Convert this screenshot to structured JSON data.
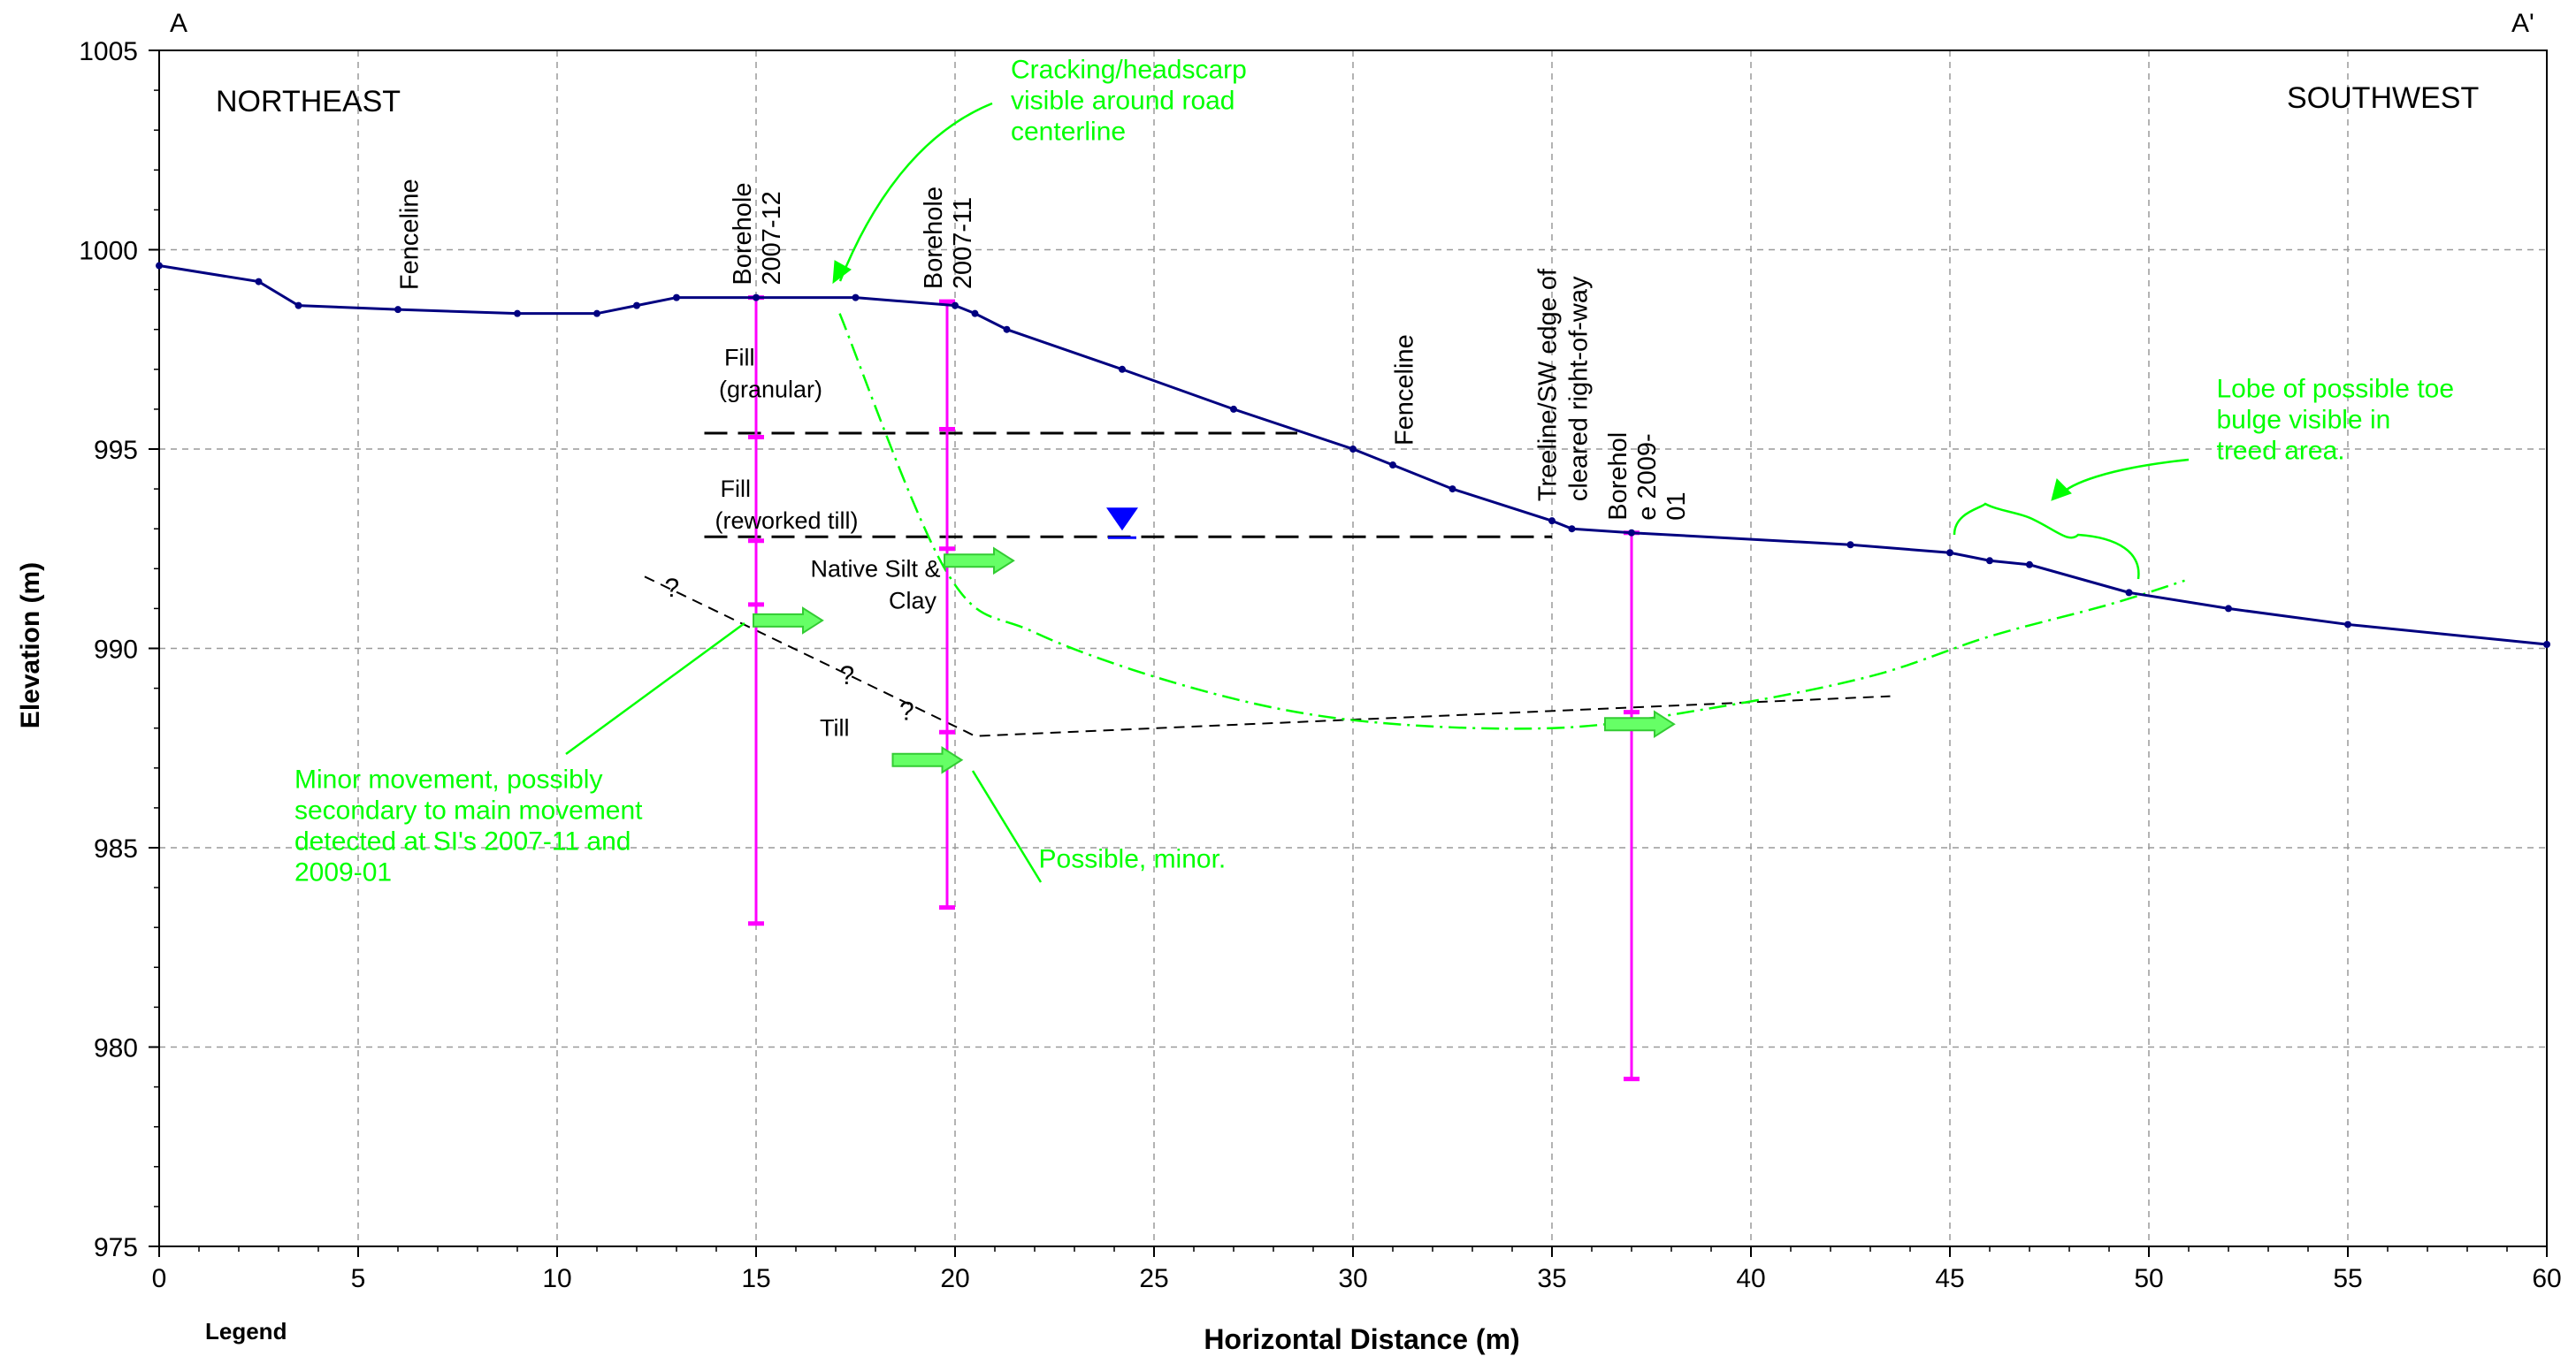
{
  "chart_data": {
    "type": "line",
    "xlabel": "Horizontal Distance (m)",
    "ylabel": "Elevation (m)",
    "xlim": [
      0,
      60
    ],
    "ylim": [
      975,
      1005
    ],
    "x_ticks": [
      0,
      5,
      10,
      15,
      20,
      25,
      30,
      35,
      40,
      45,
      50,
      55,
      60
    ],
    "y_ticks": [
      975,
      980,
      985,
      990,
      995,
      1000,
      1005
    ],
    "x_tick_labels": [
      "0",
      "5",
      "10",
      "15",
      "20",
      "25",
      "30",
      "35",
      "40",
      "45",
      "50",
      "55",
      "60"
    ],
    "y_tick_labels": [
      "975",
      "980",
      "985",
      "990",
      "995",
      "1000",
      "1005"
    ],
    "grid": true,
    "legend_label": "Legend",
    "section_start_label": "A",
    "section_end_label": "A'",
    "direction_left": "NORTHEAST",
    "direction_right": "SOUTHWEST",
    "colors": {
      "ground": "#000080",
      "borehole": "#ff00ff",
      "annotation": "#00ff00",
      "arrow_fill": "#66ff66",
      "water": "#0000ff",
      "strata": "#000000"
    },
    "ground_surface": {
      "x": [
        0,
        2.5,
        3.5,
        6,
        9,
        11,
        12,
        13,
        15,
        17.5,
        20,
        20.5,
        21.3,
        24.2,
        27,
        30,
        31,
        32.5,
        35,
        35.5,
        37,
        42.5,
        45,
        46,
        47,
        49.5,
        52,
        55,
        60
      ],
      "y": [
        999.6,
        999.2,
        998.6,
        998.5,
        998.4,
        998.4,
        998.6,
        998.8,
        998.8,
        998.8,
        998.6,
        998.4,
        998.0,
        997.0,
        996.0,
        995.0,
        994.6,
        994.0,
        993.2,
        993.0,
        992.9,
        992.6,
        992.4,
        992.2,
        992.1,
        991.4,
        991.0,
        990.6,
        990.1
      ]
    },
    "boreholes": [
      {
        "x": 15,
        "top": 998.8,
        "bottom": 983.1,
        "markers": [
          995.3,
          992.7,
          991.1
        ],
        "label": [
          "Borehole",
          "2007-12"
        ]
      },
      {
        "x": 19.8,
        "top": 998.7,
        "bottom": 983.5,
        "markers": [
          995.5,
          992.5,
          987.9
        ],
        "label": [
          "Borehole",
          "2007-11"
        ]
      },
      {
        "x": 37,
        "top": 992.9,
        "bottom": 979.2,
        "markers": [
          988.4
        ],
        "label": [
          "Borehol",
          "e 2009-",
          "01"
        ]
      }
    ],
    "strata_lines": [
      {
        "x": [
          13.7,
          28.6
        ],
        "y": [
          995.4,
          995.4
        ],
        "style": "long-dash"
      },
      {
        "x": [
          13.7,
          35
        ],
        "y": [
          992.8,
          992.8
        ],
        "style": "long-dash"
      },
      {
        "x": [
          12.2,
          20.3,
          20.5,
          43.5
        ],
        "y": [
          991.8,
          987.9,
          987.8,
          988.8
        ],
        "style": "short-dash"
      }
    ],
    "slip_surface": {
      "x": [
        17.1,
        19.8,
        22,
        26,
        30,
        35,
        39,
        43,
        46,
        49,
        50.9
      ],
      "y": [
        998.4,
        991.9,
        990.4,
        989.0,
        988.2,
        988.0,
        988.5,
        989.3,
        990.3,
        991.1,
        991.7
      ]
    },
    "water_table": {
      "x": 24.2,
      "y": 993.0
    },
    "movement_arrows": [
      {
        "x": 15.8,
        "y": 990.7
      },
      {
        "x": 20.6,
        "y": 992.2
      },
      {
        "x": 19.3,
        "y": 987.2
      },
      {
        "x": 37.2,
        "y": 988.1
      }
    ],
    "question_marks": [
      {
        "x": 12.7,
        "y": 991.3,
        "text": "?"
      },
      {
        "x": 17.1,
        "y": 989.1,
        "text": "?"
      },
      {
        "x": 18.6,
        "y": 988.2,
        "text": "?"
      }
    ],
    "vertical_labels": [
      {
        "x": 6.5,
        "y": 998.5,
        "text": [
          "Fenceline"
        ]
      },
      {
        "x": 31.5,
        "y": 994.6,
        "text": [
          "Fenceline"
        ]
      },
      {
        "x": 35.1,
        "y": 993.2,
        "text": [
          "Treeline/SW edge of",
          "cleared right-of-way"
        ]
      }
    ],
    "stratum_labels": [
      {
        "x": 14.2,
        "y": 997.1,
        "text": [
          "Fill",
          "(granular)"
        ]
      },
      {
        "x": 14.1,
        "y": 993.8,
        "text": [
          "Fill",
          "(reworked till)"
        ]
      },
      {
        "x": 18.0,
        "y": 991.8,
        "text": [
          "Native Silt &",
          "Clay"
        ]
      },
      {
        "x": 16.6,
        "y": 987.8,
        "text": [
          "Till"
        ]
      }
    ],
    "annotations": [
      {
        "id": "headscarp",
        "text": [
          "Cracking/headscarp",
          "visible around road",
          "centerline"
        ],
        "x": 21.4,
        "y": 1004.3
      },
      {
        "id": "toe-bulge",
        "text": [
          "Lobe of possible toe",
          "bulge visible in",
          "treed area."
        ],
        "x": 51.7,
        "y": 996.3
      },
      {
        "id": "minor-movement",
        "text": [
          "Minor movement, possibly",
          "secondary to main movement",
          "detected at SI's 2007-11 and",
          "2009-01"
        ],
        "x": 3.4,
        "y": 986.5
      },
      {
        "id": "possible-minor",
        "text": [
          "Possible, minor."
        ],
        "x": 22.1,
        "y": 984.5
      }
    ]
  }
}
